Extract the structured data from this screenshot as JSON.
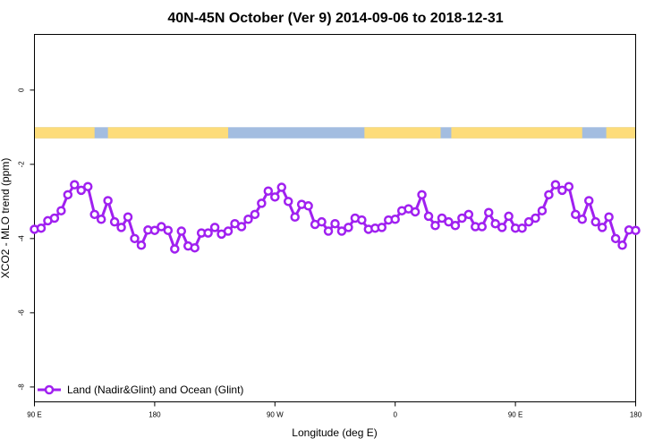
{
  "chart_data": {
    "type": "line",
    "title": "40N-45N October (Ver 9)   2014-09-06 to 2018-12-31",
    "xlabel": "Longitude (deg E)",
    "ylabel": "XCO2 - MLO trend (ppm)",
    "xlim": [
      90,
      540
    ],
    "ylim": [
      -8.4,
      1.5
    ],
    "x_ticks": [
      {
        "value": 90,
        "label": "90 E"
      },
      {
        "value": 180,
        "label": "180"
      },
      {
        "value": 270,
        "label": "90 W"
      },
      {
        "value": 360,
        "label": "0"
      },
      {
        "value": 450,
        "label": "90 E"
      },
      {
        "value": 540,
        "label": "180"
      }
    ],
    "y_ticks": [
      {
        "value": 0,
        "label": "0"
      },
      {
        "value": -2,
        "label": "-2"
      },
      {
        "value": -4,
        "label": "-4"
      },
      {
        "value": -6,
        "label": "-6"
      },
      {
        "value": -8,
        "label": "-8"
      }
    ],
    "grid": false,
    "legend_position": "bottom-left",
    "colors": {
      "series": "#a020f0",
      "land": "#fddc7a",
      "ocean": "#a3bde0"
    },
    "land_ocean_strip": {
      "y_range": [
        -1.3,
        -1.0
      ],
      "land_lon_ranges": [
        [
          90,
          135
        ],
        [
          145,
          235
        ],
        [
          337,
          394
        ],
        [
          402,
          500
        ],
        [
          518,
          540
        ]
      ]
    },
    "series": [
      {
        "name": "Land (Nadir&Glint) and Ocean (Glint)",
        "x": [
          90,
          95,
          100,
          105,
          110,
          115,
          120,
          125,
          130,
          135,
          140,
          145,
          150,
          155,
          160,
          165,
          170,
          175,
          180,
          185,
          190,
          195,
          200,
          205,
          210,
          215,
          220,
          225,
          230,
          235,
          240,
          245,
          250,
          255,
          260,
          265,
          270,
          275,
          280,
          285,
          290,
          295,
          300,
          305,
          310,
          315,
          320,
          325,
          330,
          335,
          340,
          345,
          350,
          355,
          360,
          365,
          370,
          375,
          380,
          385,
          390,
          395,
          400,
          405,
          410,
          415,
          420,
          425,
          430,
          435,
          440,
          445,
          450,
          455,
          460,
          465,
          470,
          475,
          480,
          485,
          490,
          495,
          500,
          505,
          510,
          515,
          520,
          525,
          530,
          535,
          540
        ],
        "y": [
          -3.75,
          -3.72,
          -3.52,
          -3.45,
          -3.25,
          -2.82,
          -2.55,
          -2.7,
          -2.6,
          -3.35,
          -3.48,
          -2.98,
          -3.55,
          -3.7,
          -3.42,
          -4.0,
          -4.18,
          -3.77,
          -3.78,
          -3.68,
          -3.78,
          -4.28,
          -3.8,
          -4.2,
          -4.25,
          -3.85,
          -3.85,
          -3.7,
          -3.88,
          -3.8,
          -3.6,
          -3.68,
          -3.48,
          -3.35,
          -3.05,
          -2.72,
          -2.88,
          -2.62,
          -3.0,
          -3.42,
          -3.08,
          -3.12,
          -3.62,
          -3.55,
          -3.8,
          -3.6,
          -3.8,
          -3.7,
          -3.45,
          -3.5,
          -3.75,
          -3.72,
          -3.7,
          -3.5,
          -3.48,
          -3.25,
          -3.2,
          -3.28,
          -2.82,
          -3.4,
          -3.65,
          -3.45,
          -3.55,
          -3.65,
          -3.45,
          -3.35,
          -3.68,
          -3.68,
          -3.3,
          -3.6,
          -3.7,
          -3.4,
          -3.72,
          -3.72,
          -3.55,
          -3.45,
          -3.25,
          -2.82,
          -2.55,
          -2.7,
          -2.6,
          -3.35,
          -3.48,
          -2.98,
          -3.55,
          -3.7,
          -3.42,
          -4.0,
          -4.18,
          -3.77,
          -3.78
        ]
      }
    ]
  }
}
